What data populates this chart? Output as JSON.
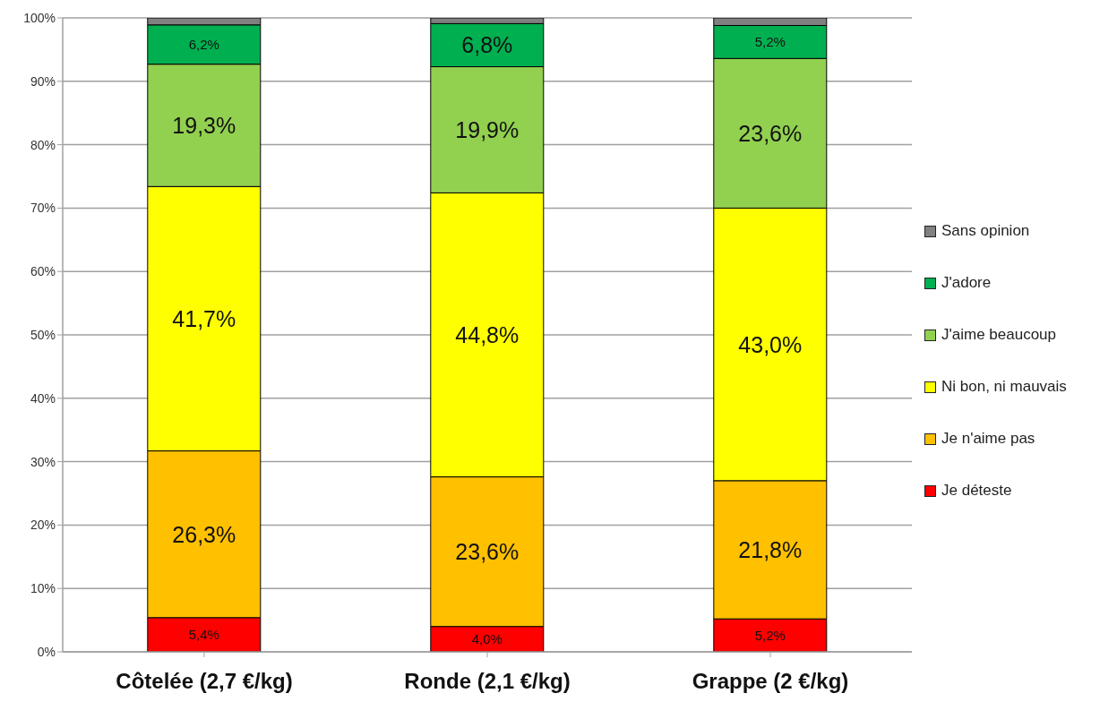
{
  "chart_data": {
    "type": "bar",
    "stacked": true,
    "categories": [
      "Côtelée (2,7 €/kg)",
      "Ronde (2,1 €/kg)",
      "Grappe (2 €/kg)"
    ],
    "series": [
      {
        "name": "Je déteste",
        "color": "#ff0000",
        "values": [
          5.4,
          4.0,
          5.2
        ],
        "value_labels": [
          "5,4%",
          "4,0%",
          "5,2%"
        ]
      },
      {
        "name": "Je n'aime pas",
        "color": "#ffc000",
        "values": [
          26.3,
          23.6,
          21.8
        ],
        "value_labels": [
          "26,3%",
          "23,6%",
          "21,8%"
        ]
      },
      {
        "name": "Ni bon, ni mauvais",
        "color": "#ffff00",
        "values": [
          41.7,
          44.8,
          43.0
        ],
        "value_labels": [
          "41,7%",
          "44,8%",
          "43,0%"
        ]
      },
      {
        "name": "J'aime beaucoup",
        "color": "#92d050",
        "values": [
          19.3,
          19.9,
          23.6
        ],
        "value_labels": [
          "19,3%",
          "19,9%",
          "23,6%"
        ]
      },
      {
        "name": "J'adore",
        "color": "#00b050",
        "values": [
          6.2,
          6.8,
          5.2
        ],
        "value_labels": [
          "6,2%",
          "6,8%",
          "5,2%"
        ]
      },
      {
        "name": "Sans opinion",
        "color": "#808080",
        "values": [
          1.1,
          0.9,
          1.2
        ]
      }
    ],
    "ylim": [
      0,
      100
    ],
    "yticks": [
      {
        "value": 0,
        "label": "0%"
      },
      {
        "value": 10,
        "label": "10%"
      },
      {
        "value": 20,
        "label": "20%"
      },
      {
        "value": 30,
        "label": "30%"
      },
      {
        "value": 40,
        "label": "40%"
      },
      {
        "value": 50,
        "label": "50%"
      },
      {
        "value": 60,
        "label": "60%"
      },
      {
        "value": 70,
        "label": "70%"
      },
      {
        "value": 80,
        "label": "80%"
      },
      {
        "value": 90,
        "label": "90%"
      },
      {
        "value": 100,
        "label": "100%"
      }
    ],
    "grid": "y",
    "legend": "right"
  }
}
